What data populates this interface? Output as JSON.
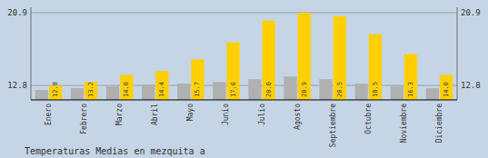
{
  "chart_data": {
    "type": "bar",
    "title": "Temperaturas Medias en mezquita a",
    "categories": [
      "Enero",
      "Febrero",
      "Marzo",
      "Abril",
      "Mayo",
      "Junio",
      "Julio",
      "Agosto",
      "Septiembre",
      "Octubre",
      "Noviembre",
      "Diciembre"
    ],
    "series": [
      {
        "color": "#B0B0B0",
        "values": [
          12.3,
          12.5,
          12.7,
          12.9,
          13.0,
          13.2,
          13.5,
          13.8,
          13.5,
          13.0,
          12.7,
          12.5
        ]
      },
      {
        "color": "#FFD000",
        "values": [
          12.8,
          13.2,
          14.0,
          14.4,
          15.7,
          17.6,
          20.0,
          20.9,
          20.5,
          18.5,
          16.3,
          14.0
        ],
        "value_labels": [
          "12.8",
          "13.2",
          "14.0",
          "14.4",
          "15.7",
          "17.6",
          "20.0",
          "20.9",
          "20.5",
          "18.5",
          "16.3",
          "14.0"
        ],
        "data_labels": true
      }
    ],
    "ylim": [
      11.2,
      21.5
    ],
    "yticks": [
      12.8,
      20.9
    ],
    "y2lim": [
      11.2,
      21.5
    ],
    "y2ticks": [
      12.8,
      20.9
    ],
    "grid": true
  }
}
